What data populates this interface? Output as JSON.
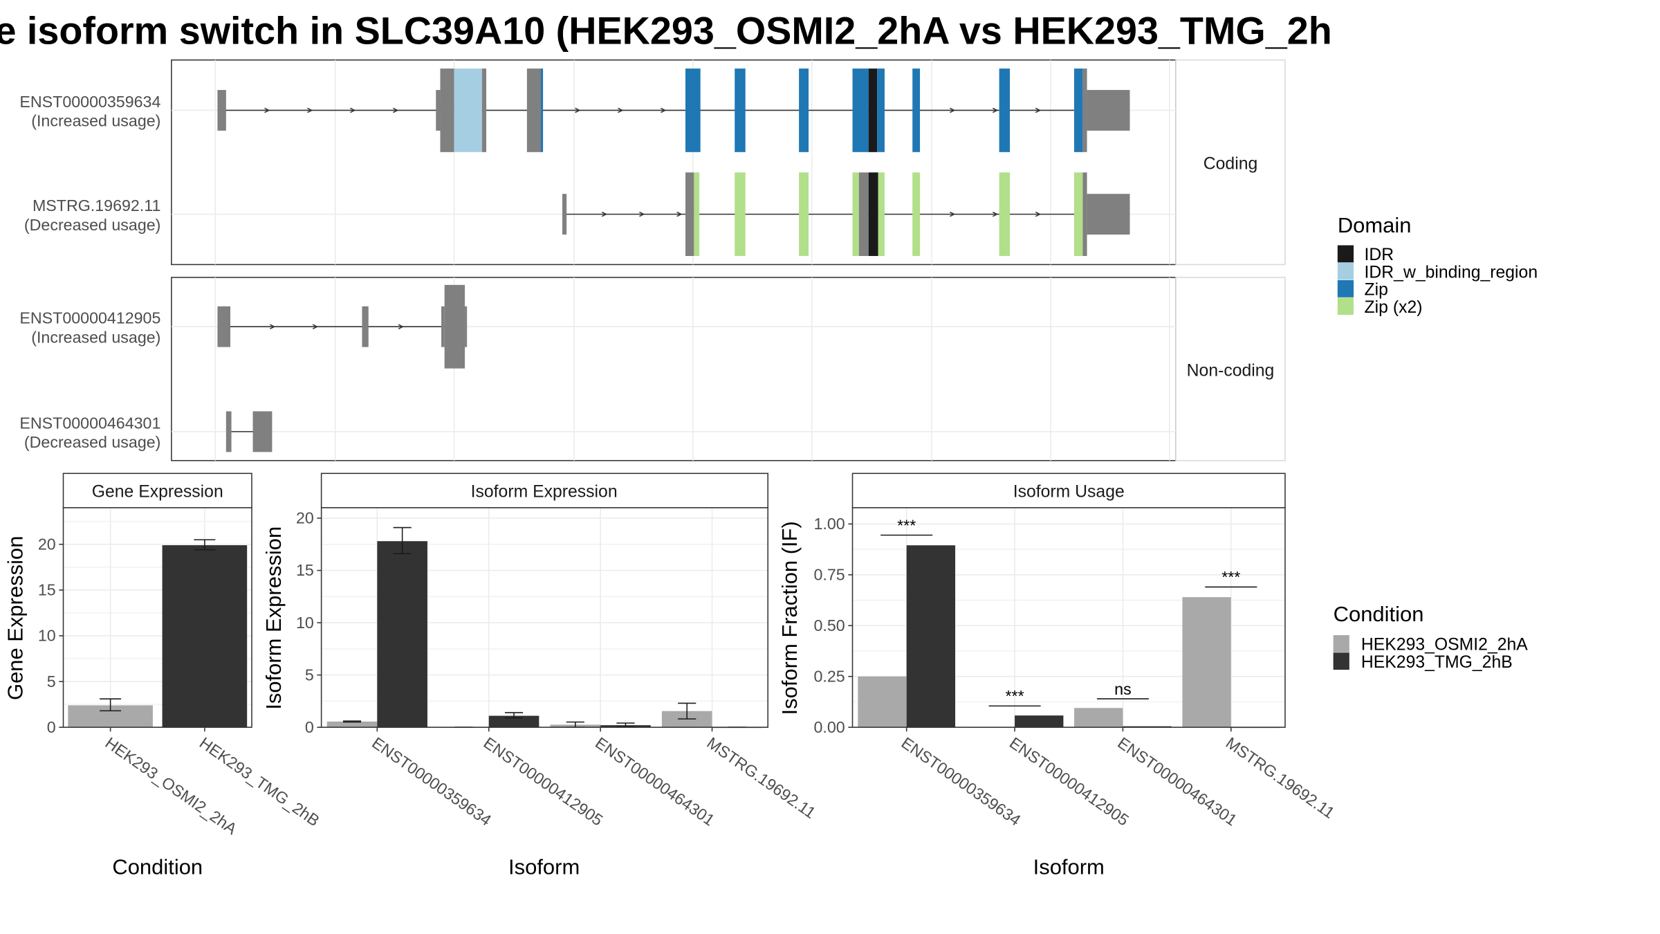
{
  "title": "e isoform switch in SLC39A10 (HEK293_OSMI2_2hA vs HEK293_TMG_2h",
  "structure": {
    "panels": [
      {
        "strip": "Coding",
        "isoforms": [
          {
            "id": "ENST00000359634",
            "line1": "ENST00000359634",
            "line2": "(Increased usage)",
            "intron_span": [
              203,
              1008
            ],
            "arrows": [
              250,
              290,
              330,
              370,
              540,
              580,
              620,
              890,
              930,
              970
            ],
            "exons": [
              {
                "x1": 203,
                "x2": 211,
                "h": "utr",
                "domain": "none"
              },
              {
                "x1": 407,
                "x2": 411,
                "h": "utr",
                "domain": "none"
              },
              {
                "x1": 411,
                "x2": 424,
                "h": "cds",
                "domain": "none"
              },
              {
                "x1": 424,
                "x2": 450,
                "h": "cds",
                "domain": "IDR_w_binding_region"
              },
              {
                "x1": 450,
                "x2": 454,
                "h": "cds",
                "domain": "none"
              },
              {
                "x1": 492,
                "x2": 505,
                "h": "cds",
                "domain": "none"
              },
              {
                "x1": 505,
                "x2": 507,
                "h": "cds",
                "domain": "Zip"
              },
              {
                "x1": 640,
                "x2": 654,
                "h": "cds",
                "domain": "Zip"
              },
              {
                "x1": 686,
                "x2": 696,
                "h": "cds",
                "domain": "Zip"
              },
              {
                "x1": 746,
                "x2": 755,
                "h": "cds",
                "domain": "Zip"
              },
              {
                "x1": 796,
                "x2": 811,
                "h": "cds",
                "domain": "Zip"
              },
              {
                "x1": 811,
                "x2": 819,
                "h": "cds",
                "domain": "IDR"
              },
              {
                "x1": 819,
                "x2": 826,
                "h": "cds",
                "domain": "Zip"
              },
              {
                "x1": 852,
                "x2": 859,
                "h": "cds",
                "domain": "Zip"
              },
              {
                "x1": 933,
                "x2": 943,
                "h": "cds",
                "domain": "Zip"
              },
              {
                "x1": 1003,
                "x2": 1011,
                "h": "cds",
                "domain": "Zip"
              },
              {
                "x1": 1011,
                "x2": 1015,
                "h": "cds",
                "domain": "none"
              },
              {
                "x1": 1015,
                "x2": 1055,
                "h": "utr",
                "domain": "none"
              }
            ]
          },
          {
            "id": "MSTRG.19692.11",
            "line1": "MSTRG.19692.11",
            "line2": "(Decreased usage)",
            "intron_span": [
              525,
              1008
            ],
            "arrows": [
              565,
              600,
              635,
              890,
              930,
              970
            ],
            "exons": [
              {
                "x1": 525,
                "x2": 529,
                "h": "utr",
                "domain": "none"
              },
              {
                "x1": 640,
                "x2": 648,
                "h": "cds",
                "domain": "none"
              },
              {
                "x1": 648,
                "x2": 653,
                "h": "cds",
                "domain": "Zip (x2)"
              },
              {
                "x1": 686,
                "x2": 696,
                "h": "cds",
                "domain": "Zip (x2)"
              },
              {
                "x1": 746,
                "x2": 755,
                "h": "cds",
                "domain": "Zip (x2)"
              },
              {
                "x1": 796,
                "x2": 802,
                "h": "cds",
                "domain": "Zip (x2)"
              },
              {
                "x1": 802,
                "x2": 811,
                "h": "cds",
                "domain": "none"
              },
              {
                "x1": 811,
                "x2": 820,
                "h": "cds",
                "domain": "IDR"
              },
              {
                "x1": 820,
                "x2": 826,
                "h": "cds",
                "domain": "Zip (x2)"
              },
              {
                "x1": 852,
                "x2": 859,
                "h": "cds",
                "domain": "Zip (x2)"
              },
              {
                "x1": 933,
                "x2": 943,
                "h": "cds",
                "domain": "Zip (x2)"
              },
              {
                "x1": 1003,
                "x2": 1011,
                "h": "cds",
                "domain": "Zip (x2)"
              },
              {
                "x1": 1011,
                "x2": 1015,
                "h": "cds",
                "domain": "none"
              },
              {
                "x1": 1015,
                "x2": 1055,
                "h": "utr",
                "domain": "none"
              }
            ]
          }
        ]
      },
      {
        "strip": "Non-coding",
        "isoforms": [
          {
            "id": "ENST00000412905",
            "line1": "ENST00000412905",
            "line2": "(Increased usage)",
            "intron_span": [
              203,
              418
            ],
            "arrows": [
              255,
              295,
              375
            ],
            "exons": [
              {
                "x1": 203,
                "x2": 215,
                "h": "cds",
                "domain": "none"
              },
              {
                "x1": 338,
                "x2": 344,
                "h": "cds",
                "domain": "none"
              },
              {
                "x1": 412,
                "x2": 415,
                "h": "cds",
                "domain": "none"
              },
              {
                "x1": 415,
                "x2": 434,
                "h": "big",
                "domain": "none"
              },
              {
                "x1": 434,
                "x2": 436,
                "h": "cds",
                "domain": "none"
              }
            ]
          },
          {
            "id": "ENST00000464301",
            "line1": "ENST00000464301",
            "line2": "(Decreased usage)",
            "intron_span": [
              214,
              238
            ],
            "arrows": [],
            "exons": [
              {
                "x1": 211,
                "x2": 216,
                "h": "cds",
                "domain": "none"
              },
              {
                "x1": 236,
                "x2": 254,
                "h": "cds",
                "domain": "none"
              }
            ]
          }
        ]
      }
    ]
  },
  "legend_domain": {
    "title": "Domain",
    "items": [
      {
        "label": "IDR",
        "color": "#1a1a1a"
      },
      {
        "label": "IDR_w_binding_region",
        "color": "#a6cee3"
      },
      {
        "label": "Zip",
        "color": "#1f78b4"
      },
      {
        "label": "Zip (x2)",
        "color": "#b2df8a"
      }
    ]
  },
  "legend_condition": {
    "title": "Condition",
    "items": [
      {
        "label": "HEK293_OSMI2_2hA",
        "color": "#a9a9a9"
      },
      {
        "label": "HEK293_TMG_2hB",
        "color": "#333333"
      }
    ]
  },
  "chart_data": [
    {
      "type": "bar",
      "title": "Gene Expression",
      "xlabel": "Condition",
      "ylabel": "Gene Expression",
      "ylim": [
        0,
        24
      ],
      "yticks": [
        0,
        5,
        10,
        15,
        20
      ],
      "categories": [
        "HEK293_OSMI2_2hA",
        "HEK293_TMG_2hB"
      ],
      "values": [
        2.4,
        19.9
      ],
      "errors": [
        [
          1.8,
          3.1
        ],
        [
          19.4,
          20.5
        ]
      ],
      "colors": [
        "#a9a9a9",
        "#333333"
      ]
    },
    {
      "type": "bar",
      "title": "Isoform Expression",
      "xlabel": "Isoform",
      "ylabel": "Isoform Expression",
      "ylim": [
        0,
        21
      ],
      "yticks": [
        0,
        5,
        10,
        15,
        20
      ],
      "categories": [
        "ENST00000359634",
        "ENST00000412905",
        "ENST00000464301",
        "MSTRG.19692.11"
      ],
      "series": [
        {
          "name": "HEK293_OSMI2_2hA",
          "color": "#a9a9a9",
          "values": [
            0.55,
            0.0,
            0.25,
            1.55
          ],
          "errors": [
            [
              0.5,
              0.6
            ],
            [
              0.0,
              0.0
            ],
            [
              0.0,
              0.5
            ],
            [
              0.8,
              2.3
            ]
          ]
        },
        {
          "name": "HEK293_TMG_2hB",
          "color": "#333333",
          "values": [
            17.8,
            1.1,
            0.2,
            0.0
          ],
          "errors": [
            [
              16.6,
              19.1
            ],
            [
              0.9,
              1.4
            ],
            [
              0.05,
              0.4
            ],
            [
              0.0,
              0.0
            ]
          ]
        }
      ]
    },
    {
      "type": "bar",
      "title": "Isoform Usage",
      "xlabel": "Isoform",
      "ylabel": "Isoform Fraction (IF)",
      "ylim": [
        0,
        1.08
      ],
      "yticks": [
        "0.00",
        "0.25",
        "0.50",
        "0.75",
        "1.00"
      ],
      "categories": [
        "ENST00000359634",
        "ENST00000412905",
        "ENST00000464301",
        "MSTRG.19692.11"
      ],
      "series": [
        {
          "name": "HEK293_OSMI2_2hA",
          "color": "#a9a9a9",
          "values": [
            0.25,
            0.0,
            0.095,
            0.64
          ]
        },
        {
          "name": "HEK293_TMG_2hB",
          "color": "#333333",
          "values": [
            0.895,
            0.058,
            0.005,
            0.0
          ]
        }
      ],
      "significance": [
        "***",
        "***",
        "ns",
        "***"
      ],
      "sig_heights": [
        0.945,
        0.105,
        0.14,
        0.69
      ]
    }
  ]
}
